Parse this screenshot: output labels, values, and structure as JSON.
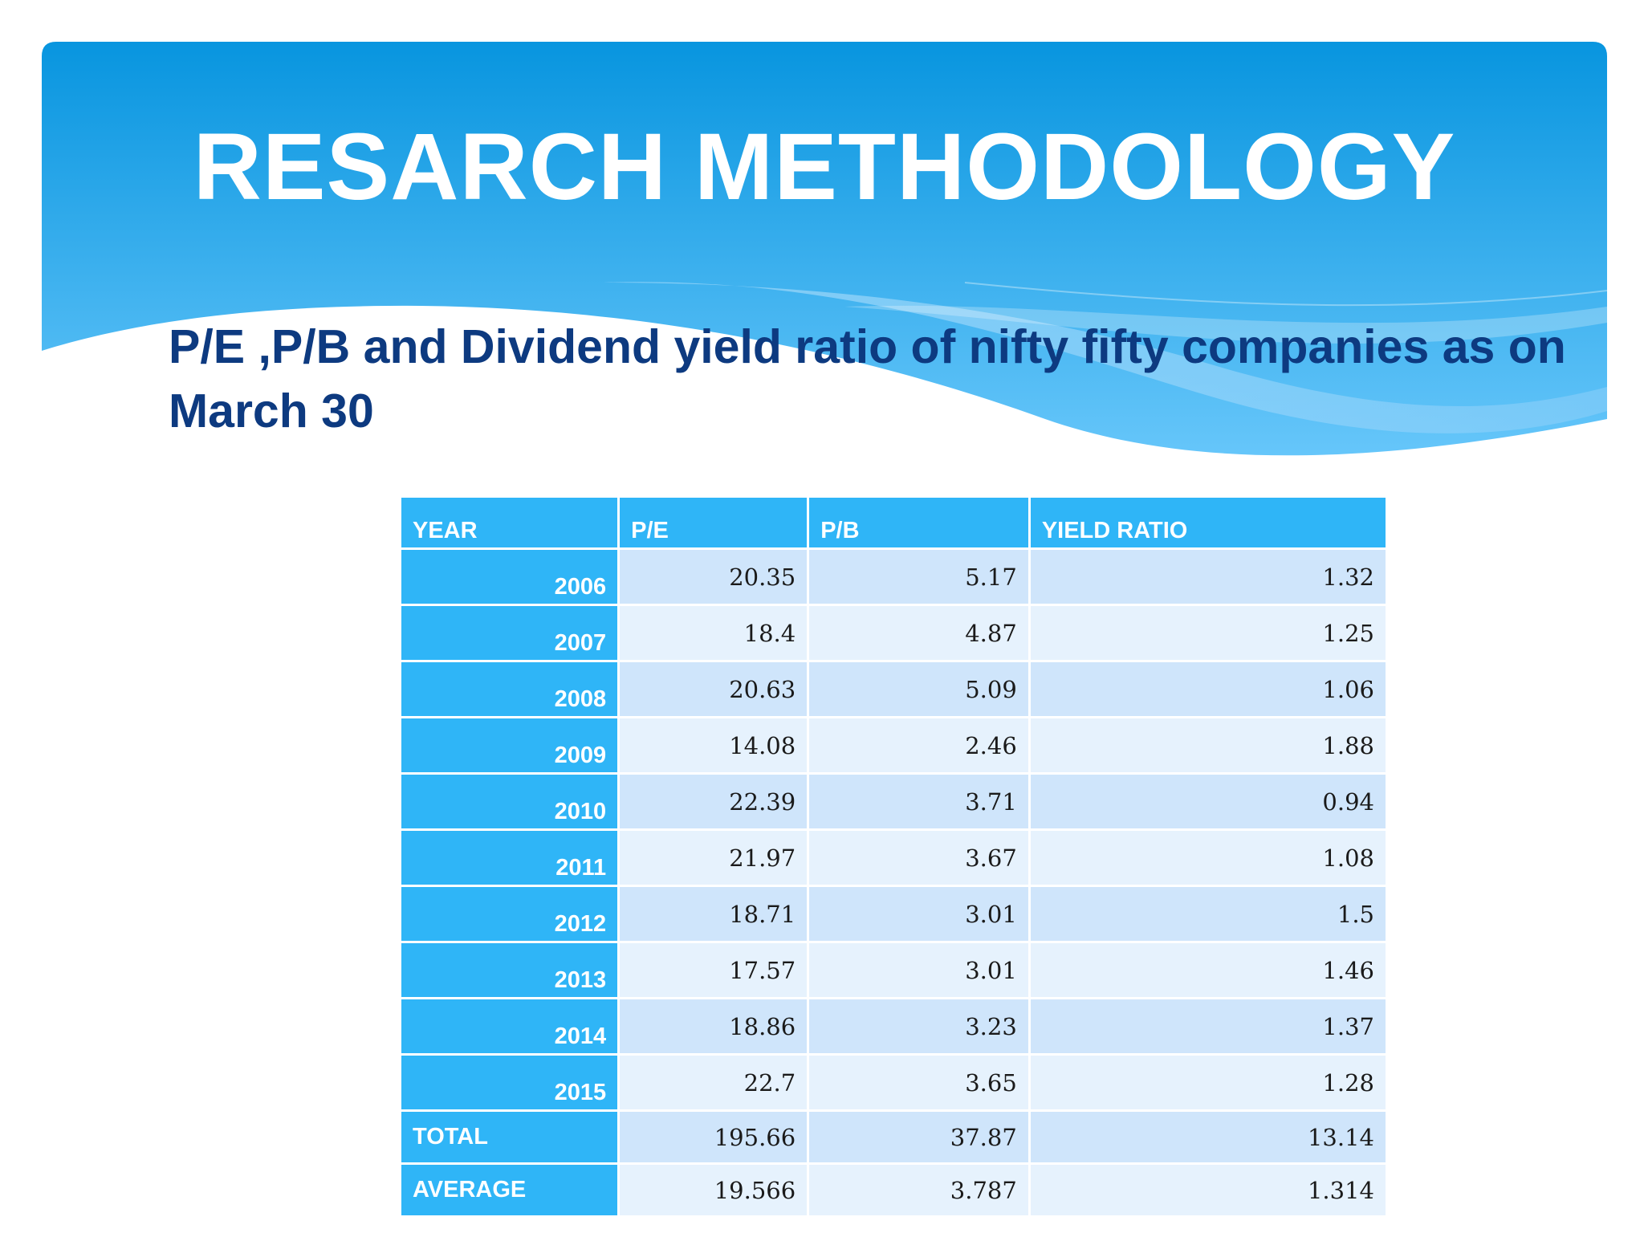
{
  "slide": {
    "title": "RESARCH METHODOLOGY",
    "subtitle": "P/E ,P/B and Dividend yield ratio of nifty fifty companies as on March 30"
  },
  "colors": {
    "banner_top": "#0895df",
    "banner_bottom": "#66c6fa",
    "header_cell": "#2fb5f7",
    "row_dark": "#cfe5fb",
    "row_light": "#e6f2fd",
    "subtitle_text": "#0d3a80"
  },
  "table": {
    "headers": [
      "YEAR",
      "P/E",
      "P/B",
      "YIELD RATIO"
    ],
    "rows": [
      [
        "2006",
        "20.35",
        "5.17",
        "1.32"
      ],
      [
        "2007",
        "18.4",
        "4.87",
        "1.25"
      ],
      [
        "2008",
        "20.63",
        "5.09",
        "1.06"
      ],
      [
        "2009",
        "14.08",
        "2.46",
        "1.88"
      ],
      [
        "2010",
        "22.39",
        "3.71",
        "0.94"
      ],
      [
        "2011",
        "21.97",
        "3.67",
        "1.08"
      ],
      [
        "2012",
        "18.71",
        "3.01",
        "1.5"
      ],
      [
        "2013",
        "17.57",
        "3.01",
        "1.46"
      ],
      [
        "2014",
        "18.86",
        "3.23",
        "1.37"
      ],
      [
        "2015",
        "22.7",
        "3.65",
        "1.28"
      ],
      [
        "TOTAL",
        "195.66",
        "37.87",
        "13.14"
      ],
      [
        "AVERAGE",
        "19.566",
        "3.787",
        "1.314"
      ]
    ]
  }
}
